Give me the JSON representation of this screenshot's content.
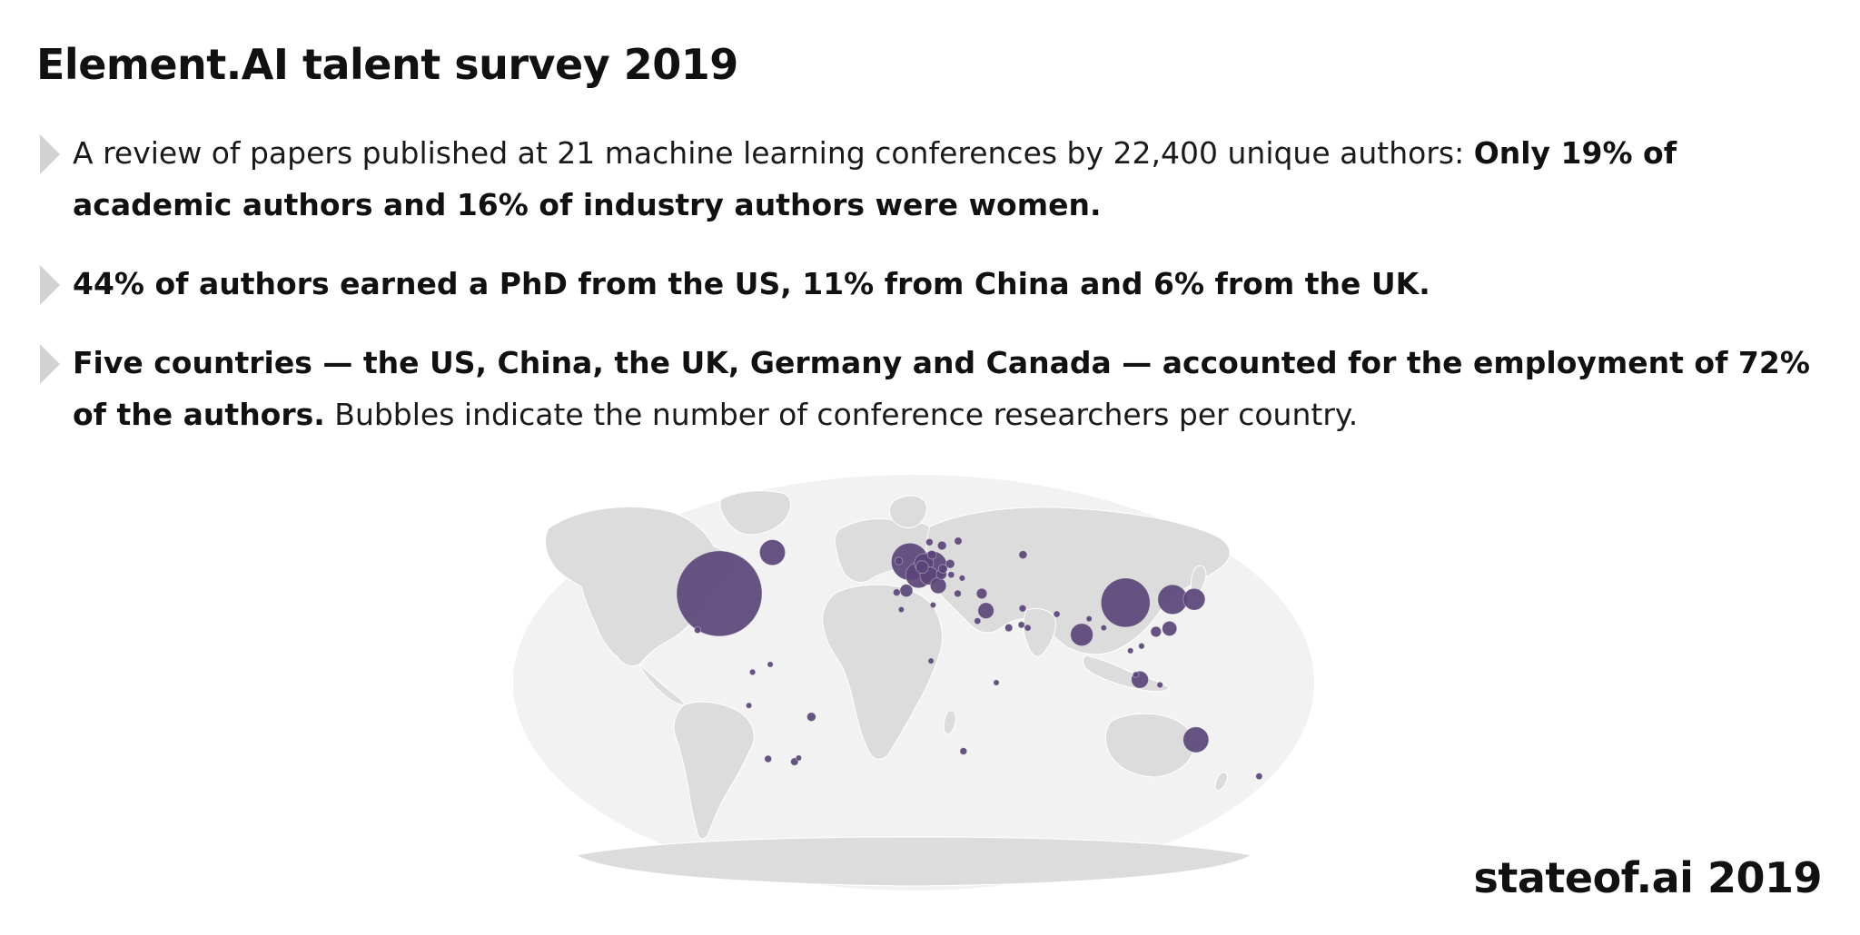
{
  "title": "Element.AI talent survey 2019",
  "bullets": [
    {
      "normal_lead": "A review of papers published at 21 machine learning conferences by 22,400 unique authors: ",
      "bold": "Only 19% of academic authors and 16% of industry authors were women.",
      "normal_tail": ""
    },
    {
      "normal_lead": "",
      "bold": "44% of authors earned a PhD from the US, 11% from China and 6% from the UK.",
      "normal_tail": ""
    },
    {
      "normal_lead": "",
      "bold": "Five countries — the US, China, the UK, Germany and Canada — accounted for the employment of 72% of the authors.",
      "normal_tail": " Bubbles indicate the number of conference researchers per country."
    }
  ],
  "footer": "stateof.ai 2019",
  "map": {
    "land_color": "#dcdcdc",
    "ocean_color": "#f2f2f2",
    "bubble_color": "#5b4578"
  },
  "bubbles": [
    {
      "name": "United States",
      "lon": -97,
      "lat": 39,
      "size": 10000
    },
    {
      "name": "Canada",
      "lon": -78,
      "lat": 57,
      "size": 900
    },
    {
      "name": "Mexico",
      "lon": -102,
      "lat": 23,
      "size": 60
    },
    {
      "name": "United Kingdom",
      "lon": -2,
      "lat": 53,
      "size": 1900
    },
    {
      "name": "France",
      "lon": 2.5,
      "lat": 47,
      "size": 900
    },
    {
      "name": "Germany",
      "lon": 10,
      "lat": 51,
      "size": 1200
    },
    {
      "name": "Netherlands",
      "lon": 5.5,
      "lat": 52.3,
      "size": 500
    },
    {
      "name": "Switzerland",
      "lon": 8,
      "lat": 46.8,
      "size": 450
    },
    {
      "name": "Italy",
      "lon": 12.5,
      "lat": 42.5,
      "size": 350
    },
    {
      "name": "Spain",
      "lon": -3.7,
      "lat": 40.3,
      "size": 220
    },
    {
      "name": "Portugal",
      "lon": -8.5,
      "lat": 39.5,
      "size": 70
    },
    {
      "name": "Belgium",
      "lon": 4.5,
      "lat": 50.6,
      "size": 220
    },
    {
      "name": "Denmark",
      "lon": 10,
      "lat": 56,
      "size": 110
    },
    {
      "name": "Sweden",
      "lon": 16,
      "lat": 60,
      "size": 110
    },
    {
      "name": "Norway",
      "lon": 9,
      "lat": 61.5,
      "size": 70
    },
    {
      "name": "Finland",
      "lon": 25.5,
      "lat": 62,
      "size": 80
    },
    {
      "name": "Austria",
      "lon": 14.5,
      "lat": 47.5,
      "size": 150
    },
    {
      "name": "Czech Republic",
      "lon": 15.5,
      "lat": 49.8,
      "size": 110
    },
    {
      "name": "Poland",
      "lon": 19.5,
      "lat": 52,
      "size": 110
    },
    {
      "name": "Hungary",
      "lon": 19.5,
      "lat": 47.2,
      "size": 60
    },
    {
      "name": "Romania",
      "lon": 25,
      "lat": 45.8,
      "size": 50
    },
    {
      "name": "Ireland",
      "lon": -8,
      "lat": 53.3,
      "size": 80
    },
    {
      "name": "Greece",
      "lon": 22,
      "lat": 39,
      "size": 70
    },
    {
      "name": "Turkey",
      "lon": 34,
      "lat": 39,
      "size": 150
    },
    {
      "name": "Israel",
      "lon": 35,
      "lat": 31.5,
      "size": 350
    },
    {
      "name": "Russia",
      "lon": 60,
      "lat": 56,
      "size": 90
    },
    {
      "name": "Egypt",
      "lon": 30.5,
      "lat": 27,
      "size": 60
    },
    {
      "name": "Morocco",
      "lon": -6,
      "lat": 32,
      "size": 40
    },
    {
      "name": "Tunisia",
      "lon": 9.5,
      "lat": 34,
      "size": 40
    },
    {
      "name": "Saudi Arabia",
      "lon": 45,
      "lat": 24,
      "size": 80
    },
    {
      "name": "United Arab Emirates",
      "lon": 54,
      "lat": 24,
      "size": 60
    },
    {
      "name": "Qatar",
      "lon": 51.2,
      "lat": 25.3,
      "size": 60
    },
    {
      "name": "Iran",
      "lon": 53,
      "lat": 32.5,
      "size": 70
    },
    {
      "name": "Pakistan",
      "lon": 69,
      "lat": 30,
      "size": 60
    },
    {
      "name": "India",
      "lon": 79,
      "lat": 21,
      "size": 700
    },
    {
      "name": "Nepal",
      "lon": 84,
      "lat": 28,
      "size": 30
    },
    {
      "name": "Bangladesh",
      "lon": 90,
      "lat": 24,
      "size": 40
    },
    {
      "name": "China",
      "lon": 104,
      "lat": 35,
      "size": 3300
    },
    {
      "name": "South Korea",
      "lon": 127.8,
      "lat": 36.4,
      "size": 1200
    },
    {
      "name": "Japan",
      "lon": 138.5,
      "lat": 36.5,
      "size": 650
    },
    {
      "name": "Taiwan",
      "lon": 121,
      "lat": 23.7,
      "size": 300
    },
    {
      "name": "Hong Kong",
      "lon": 114.2,
      "lat": 22.3,
      "size": 150
    },
    {
      "name": "Vietnam",
      "lon": 106,
      "lat": 16,
      "size": 50
    },
    {
      "name": "Thailand",
      "lon": 100.5,
      "lat": 14,
      "size": 40
    },
    {
      "name": "Malaysia",
      "lon": 102,
      "lat": 3.5,
      "size": 40
    },
    {
      "name": "Singapore",
      "lon": 103.8,
      "lat": 1.3,
      "size": 400
    },
    {
      "name": "Indonesia",
      "lon": 113,
      "lat": -1,
      "size": 50
    },
    {
      "name": "Australia",
      "lon": 134,
      "lat": -25,
      "size": 900
    },
    {
      "name": "New Zealand",
      "lon": 174,
      "lat": -41,
      "size": 60
    },
    {
      "name": "South Africa",
      "lon": 24,
      "lat": -30,
      "size": 70
    },
    {
      "name": "Kenya",
      "lon": 37.9,
      "lat": 0,
      "size": 40
    },
    {
      "name": "Nigeria",
      "lon": 8,
      "lat": 9.5,
      "size": 30
    },
    {
      "name": "Colombia",
      "lon": -74,
      "lat": 4.6,
      "size": 50
    },
    {
      "name": "Venezuela",
      "lon": -66,
      "lat": 8,
      "size": 30
    },
    {
      "name": "Peru",
      "lon": -76,
      "lat": -10,
      "size": 40
    },
    {
      "name": "Brazil",
      "lon": -47.5,
      "lat": -15,
      "size": 110
    },
    {
      "name": "Chile",
      "lon": -71,
      "lat": -33.4,
      "size": 70
    },
    {
      "name": "Argentina",
      "lon": -58.4,
      "lat": -34.6,
      "size": 80
    },
    {
      "name": "Uruguay",
      "lon": -56,
      "lat": -33,
      "size": 30
    }
  ]
}
